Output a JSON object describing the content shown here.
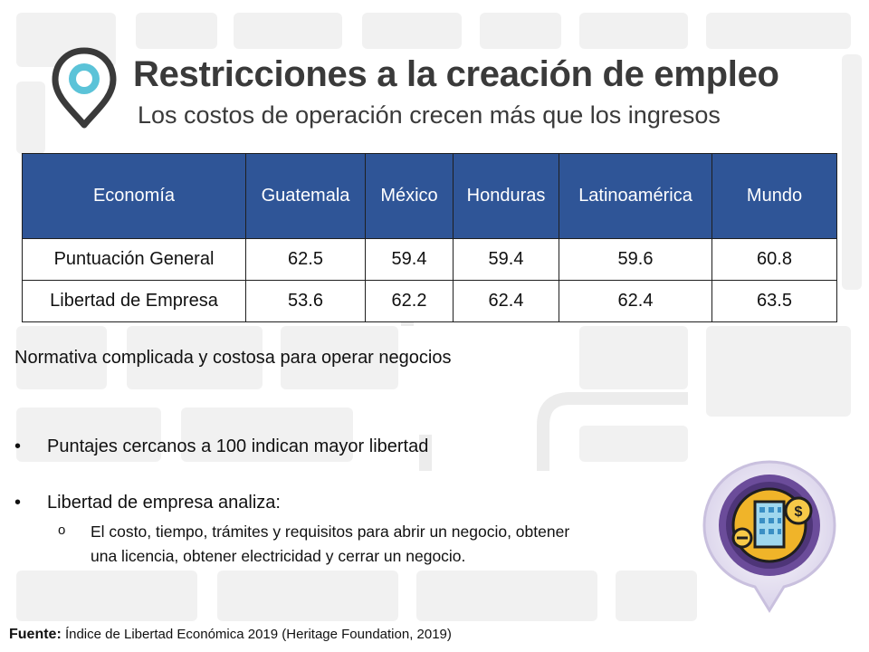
{
  "title": "Restricciones a la creación de empleo",
  "subtitle": "Los costos de operación crecen más que los ingresos",
  "table": {
    "headers": [
      "Economía",
      "Guatemala",
      "México",
      "Honduras",
      "Latinoamérica",
      "Mundo"
    ],
    "rows": [
      {
        "label": "Puntuación General",
        "values": [
          "62.5",
          "59.4",
          "59.4",
          "59.6",
          "60.8"
        ]
      },
      {
        "label": "Libertad de Empresa",
        "values": [
          "53.6",
          "62.2",
          "62.4",
          "62.4",
          "63.5"
        ]
      }
    ]
  },
  "body": {
    "intro": "Normativa complicada y costosa para operar negocios",
    "bullets": [
      "Puntajes cercanos a 100 indican mayor libertad",
      "Libertad de empresa analiza:"
    ],
    "sub_marker": "o",
    "bullet_marker": "•",
    "sub_line1": "El costo, tiempo, trámites y requisitos para abrir un negocio, obtener",
    "sub_line2": "una licencia, obtener electricidad y cerrar un negocio."
  },
  "footer": {
    "label": "Fuente:",
    "text": "Índice de Libertad Económica 2019 (Heritage Foundation, 2019)"
  },
  "colors": {
    "header_bg": "#2f5597",
    "pin_ring": "#5bc3d8",
    "badge_purple": "#6b4c9a",
    "badge_gold": "#f0b429"
  },
  "icons": {
    "pin": "map-pin-icon",
    "badge": "business-building-coin-icon"
  }
}
